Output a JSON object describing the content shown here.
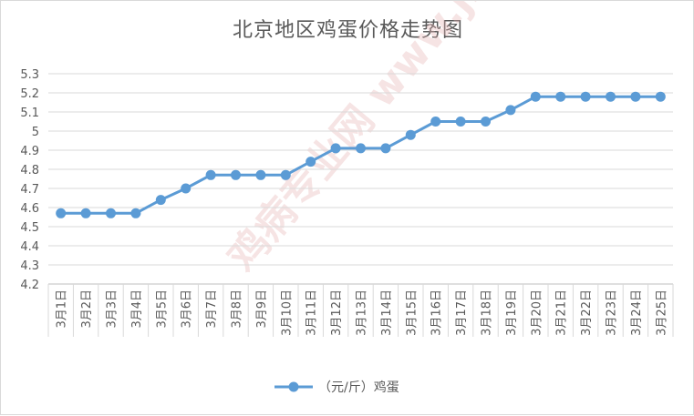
{
  "chart_data": {
    "type": "line",
    "title": "北京地区鸡蛋价格走势图",
    "xlabel": "",
    "ylabel": "",
    "ylim": [
      4.2,
      5.3
    ],
    "yticks": [
      "4.2",
      "4.3",
      "4.4",
      "4.5",
      "4.6",
      "4.7",
      "4.8",
      "4.9",
      "5",
      "5.1",
      "5.2",
      "5.3"
    ],
    "grid": true,
    "legend_position": "bottom",
    "categories": [
      "3月1日",
      "3月2日",
      "3月3日",
      "3月4日",
      "3月5日",
      "3月6日",
      "3月7日",
      "3月8日",
      "3月9日",
      "3月10日",
      "3月11日",
      "3月12日",
      "3月13日",
      "3月14日",
      "3月15日",
      "3月16日",
      "3月17日",
      "3月18日",
      "3月19日",
      "3月20日",
      "3月21日",
      "3月22日",
      "3月23日",
      "3月24日",
      "3月25日"
    ],
    "series": [
      {
        "name": "（元/斤）鸡蛋",
        "color": "#5b9bd5",
        "values": [
          4.57,
          4.57,
          4.57,
          4.57,
          4.64,
          4.7,
          4.77,
          4.77,
          4.77,
          4.77,
          4.84,
          4.91,
          4.91,
          4.91,
          4.98,
          5.05,
          5.05,
          5.05,
          5.11,
          5.18,
          5.18,
          5.18,
          5.18,
          5.18,
          5.18
        ]
      }
    ],
    "watermark": "鸡病专业网 www.jbzyw.com"
  }
}
